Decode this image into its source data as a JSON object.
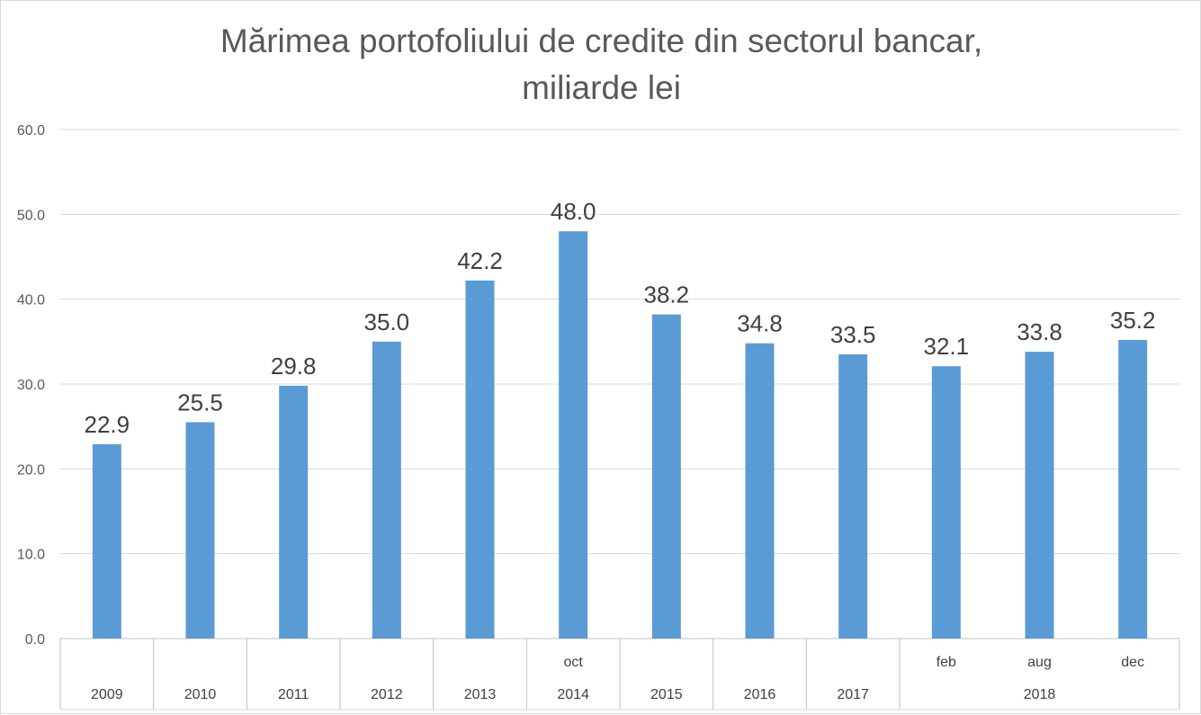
{
  "chart_data": {
    "type": "bar",
    "title_line1": "Mărimea portofoliului de credite din sectorul bancar,",
    "title_line2": "miliarde lei",
    "ylim": [
      0,
      60
    ],
    "yticks": [
      "0.0",
      "10.0",
      "20.0",
      "30.0",
      "40.0",
      "50.0",
      "60.0"
    ],
    "grid": true,
    "color": "#5b9bd5",
    "categories": [
      {
        "sub": "",
        "group": "2009"
      },
      {
        "sub": "",
        "group": "2010"
      },
      {
        "sub": "",
        "group": "2011"
      },
      {
        "sub": "",
        "group": "2012"
      },
      {
        "sub": "",
        "group": "2013"
      },
      {
        "sub": "oct",
        "group": "2014"
      },
      {
        "sub": "",
        "group": "2015"
      },
      {
        "sub": "",
        "group": "2016"
      },
      {
        "sub": "",
        "group": "2017"
      },
      {
        "sub": "feb",
        "group": "2018"
      },
      {
        "sub": "aug",
        "group": "2018"
      },
      {
        "sub": "dec",
        "group": "2018"
      }
    ],
    "groups": [
      {
        "label": "2009",
        "span": 1
      },
      {
        "label": "2010",
        "span": 1
      },
      {
        "label": "2011",
        "span": 1
      },
      {
        "label": "2012",
        "span": 1
      },
      {
        "label": "2013",
        "span": 1
      },
      {
        "label": "2014",
        "span": 1
      },
      {
        "label": "2015",
        "span": 1
      },
      {
        "label": "2016",
        "span": 1
      },
      {
        "label": "2017",
        "span": 1
      },
      {
        "label": "2018",
        "span": 3
      }
    ],
    "values": [
      22.9,
      25.5,
      29.8,
      35.0,
      42.2,
      48.0,
      38.2,
      34.8,
      33.5,
      32.1,
      33.8,
      35.2
    ],
    "data_labels": [
      "22.9",
      "25.5",
      "29.8",
      "35.0",
      "42.2",
      "48.0",
      "38.2",
      "34.8",
      "33.5",
      "32.1",
      "33.8",
      "35.2"
    ]
  }
}
